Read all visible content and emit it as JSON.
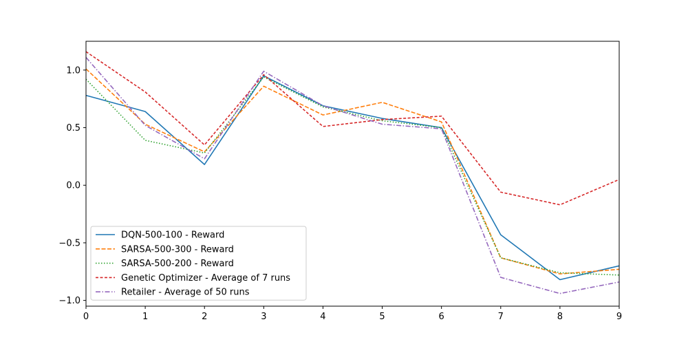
{
  "chart_data": {
    "type": "line",
    "title": "",
    "xlabel": "",
    "ylabel": "",
    "xlim": [
      0,
      9
    ],
    "ylim": [
      -1.05,
      1.25
    ],
    "xticks": [
      0,
      1,
      2,
      3,
      4,
      5,
      6,
      7,
      8,
      9
    ],
    "xtick_labels": [
      "0",
      "1",
      "2",
      "3",
      "4",
      "5",
      "6",
      "7",
      "8",
      "9"
    ],
    "yticks": [
      -1.0,
      -0.5,
      0.0,
      0.5,
      1.0
    ],
    "ytick_labels": [
      "−1.0",
      "−0.5",
      "0.0",
      "0.5",
      "1.0"
    ],
    "grid": false,
    "legend_position": "lower-left",
    "x": [
      0,
      1,
      2,
      3,
      4,
      5,
      6,
      7,
      8,
      9
    ],
    "series": [
      {
        "name": "DQN-500-100 - Reward",
        "color": "#1f77b4",
        "linestyle": "solid",
        "values": [
          0.78,
          0.64,
          0.18,
          0.95,
          0.69,
          0.58,
          0.5,
          -0.43,
          -0.82,
          -0.7
        ]
      },
      {
        "name": "SARSA-500-300 - Reward",
        "color": "#ff7f0e",
        "linestyle": "dashed",
        "values": [
          1.01,
          0.53,
          0.29,
          0.86,
          0.61,
          0.72,
          0.55,
          -0.63,
          -0.77,
          -0.73
        ]
      },
      {
        "name": "SARSA-500-200 - Reward",
        "color": "#2ca02c",
        "linestyle": "dotted",
        "values": [
          0.92,
          0.39,
          0.28,
          0.94,
          0.68,
          0.56,
          0.5,
          -0.63,
          -0.76,
          -0.78
        ]
      },
      {
        "name": "Genetic Optimizer - Average of 7 runs",
        "color": "#d62728",
        "linestyle": "densely-dashed",
        "values": [
          1.16,
          0.81,
          0.35,
          0.96,
          0.51,
          0.57,
          0.6,
          -0.06,
          -0.17,
          0.05
        ]
      },
      {
        "name": "Retailer - Average of 50 runs",
        "color": "#9467bd",
        "linestyle": "dashdot",
        "values": [
          1.11,
          0.52,
          0.23,
          0.99,
          0.69,
          0.53,
          0.49,
          -0.8,
          -0.94,
          -0.84
        ]
      }
    ]
  }
}
